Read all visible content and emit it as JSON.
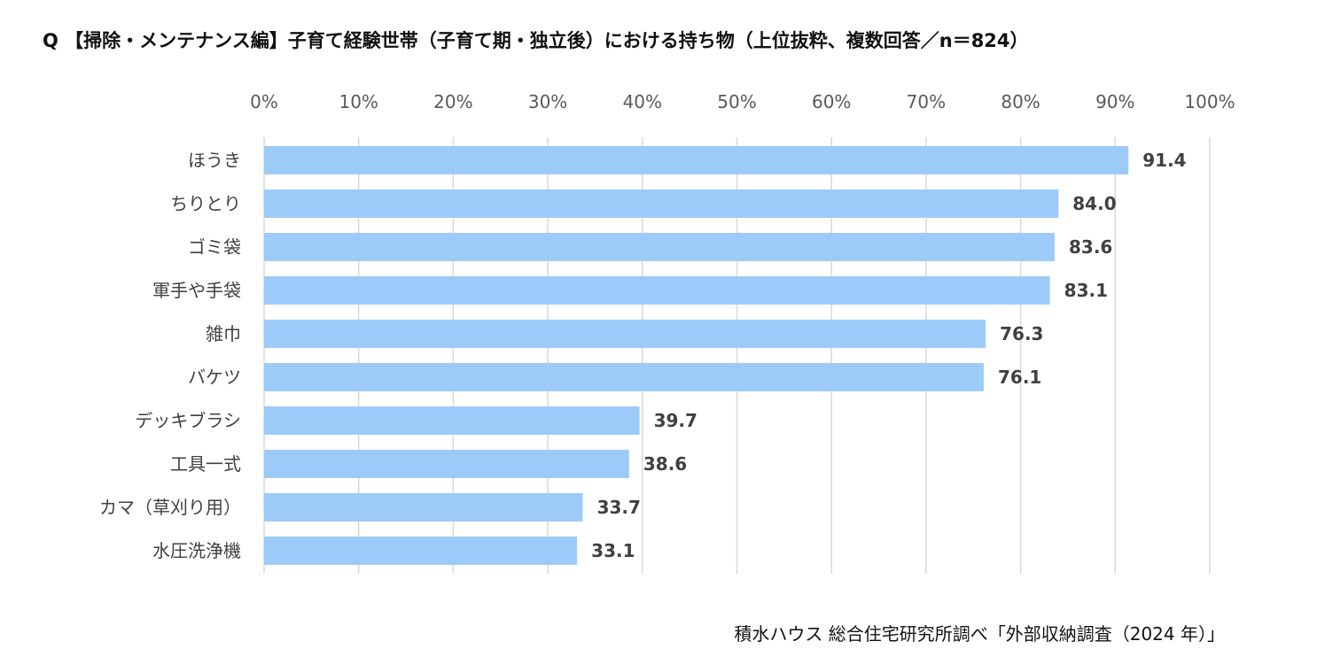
{
  "chart_data": {
    "type": "bar",
    "orientation": "horizontal",
    "title": "Q 【掃除・メンテナンス編】子育て経験世帯（子育て期・独立後）における持ち物（上位抜粋、複数回答／n＝824）",
    "categories": [
      "ほうき",
      "ちりとり",
      "ゴミ袋",
      "軍手や手袋",
      "雑巾",
      "バケツ",
      "デッキブラシ",
      "工具一式",
      "カマ（草刈り用）",
      "水圧洗浄機"
    ],
    "values": [
      91.4,
      84.0,
      83.6,
      83.1,
      76.3,
      76.1,
      39.7,
      38.6,
      33.7,
      33.1
    ],
    "value_labels": [
      "91.4",
      "84.0",
      "83.6",
      "83.1",
      "76.3",
      "76.1",
      "39.7",
      "38.6",
      "33.7",
      "33.1"
    ],
    "x_ticks": [
      "0%",
      "10%",
      "20%",
      "30%",
      "40%",
      "50%",
      "60%",
      "70%",
      "80%",
      "90%",
      "100%"
    ],
    "xlim": [
      0,
      100
    ],
    "x_axis_position": "top",
    "grid": true,
    "bar_color": "#9dcbf9",
    "grid_color": "#d9d9d9"
  },
  "source": "積水ハウス 総合住宅研究所調べ「外部収納調査（2024 年）」"
}
